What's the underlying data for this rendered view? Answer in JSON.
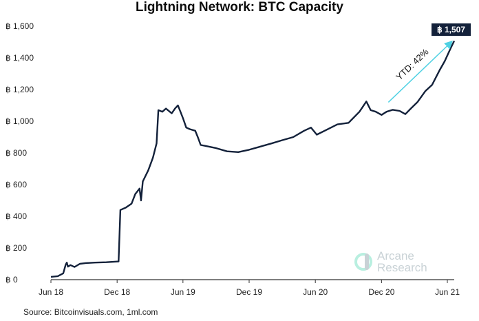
{
  "title": "Lightning Network: BTC Capacity",
  "source": "Source: Bitcoinvisuals.com, 1ml.com",
  "brand": {
    "line1": "Arcane",
    "line2": "Research",
    "logo_icon": "arcane-logo-icon"
  },
  "annotation": {
    "text": "YTD: 42%",
    "color": "#4fd1e3"
  },
  "end_label": {
    "text": "฿ 1,507",
    "bg": "#13213a",
    "fg": "#ffffff"
  },
  "colors": {
    "line": "#13213a",
    "axis": "#333333"
  },
  "chart_data": {
    "type": "line",
    "title": "Lightning Network: BTC Capacity",
    "xlabel": "",
    "ylabel": "",
    "x_ticks": [
      "Jun 18",
      "Dec 18",
      "Jun 19",
      "Dec 19",
      "Jun 20",
      "Dec 20",
      "Jun 21"
    ],
    "y_ticks": [
      "฿ 0",
      "฿ 200",
      "฿ 400",
      "฿ 600",
      "฿ 800",
      "฿ 1,000",
      "฿ 1,200",
      "฿ 1,400",
      "฿ 1,600"
    ],
    "ylim": [
      0,
      1600
    ],
    "xlim": [
      "2018-06-01",
      "2021-06-20"
    ],
    "grid": false,
    "series": [
      {
        "values": [
          [
            "2018-06-01",
            18
          ],
          [
            "2018-06-20",
            22
          ],
          [
            "2018-07-05",
            40
          ],
          [
            "2018-07-12",
            95
          ],
          [
            "2018-07-15",
            108
          ],
          [
            "2018-07-18",
            82
          ],
          [
            "2018-07-25",
            92
          ],
          [
            "2018-08-05",
            80
          ],
          [
            "2018-08-20",
            100
          ],
          [
            "2018-09-05",
            105
          ],
          [
            "2018-10-01",
            108
          ],
          [
            "2018-11-01",
            110
          ],
          [
            "2018-12-05",
            115
          ],
          [
            "2018-12-10",
            440
          ],
          [
            "2018-12-25",
            455
          ],
          [
            "2019-01-10",
            480
          ],
          [
            "2019-01-20",
            540
          ],
          [
            "2019-02-01",
            575
          ],
          [
            "2019-02-05",
            500
          ],
          [
            "2019-02-10",
            620
          ],
          [
            "2019-02-25",
            690
          ],
          [
            "2019-03-10",
            770
          ],
          [
            "2019-03-20",
            860
          ],
          [
            "2019-03-25",
            1070
          ],
          [
            "2019-04-05",
            1060
          ],
          [
            "2019-04-15",
            1080
          ],
          [
            "2019-05-01",
            1050
          ],
          [
            "2019-05-10",
            1080
          ],
          [
            "2019-05-18",
            1100
          ],
          [
            "2019-05-25",
            1060
          ],
          [
            "2019-06-01",
            1020
          ],
          [
            "2019-06-10",
            960
          ],
          [
            "2019-06-20",
            950
          ],
          [
            "2019-07-05",
            940
          ],
          [
            "2019-07-12",
            900
          ],
          [
            "2019-07-20",
            850
          ],
          [
            "2019-08-01",
            845
          ],
          [
            "2019-09-01",
            830
          ],
          [
            "2019-10-01",
            810
          ],
          [
            "2019-11-01",
            805
          ],
          [
            "2019-12-01",
            820
          ],
          [
            "2020-01-01",
            840
          ],
          [
            "2020-02-01",
            860
          ],
          [
            "2020-03-01",
            880
          ],
          [
            "2020-04-01",
            900
          ],
          [
            "2020-05-01",
            940
          ],
          [
            "2020-05-20",
            960
          ],
          [
            "2020-06-05",
            915
          ],
          [
            "2020-07-01",
            945
          ],
          [
            "2020-08-01",
            980
          ],
          [
            "2020-09-01",
            990
          ],
          [
            "2020-10-01",
            1060
          ],
          [
            "2020-10-20",
            1125
          ],
          [
            "2020-11-01",
            1070
          ],
          [
            "2020-11-15",
            1060
          ],
          [
            "2020-12-01",
            1040
          ],
          [
            "2020-12-15",
            1060
          ],
          [
            "2021-01-01",
            1072
          ],
          [
            "2021-01-20",
            1065
          ],
          [
            "2021-02-05",
            1045
          ],
          [
            "2021-02-20",
            1080
          ],
          [
            "2021-03-10",
            1120
          ],
          [
            "2021-04-01",
            1190
          ],
          [
            "2021-04-20",
            1230
          ],
          [
            "2021-05-10",
            1320
          ],
          [
            "2021-05-25",
            1380
          ],
          [
            "2021-06-10",
            1460
          ],
          [
            "2021-06-20",
            1507
          ]
        ]
      }
    ]
  }
}
